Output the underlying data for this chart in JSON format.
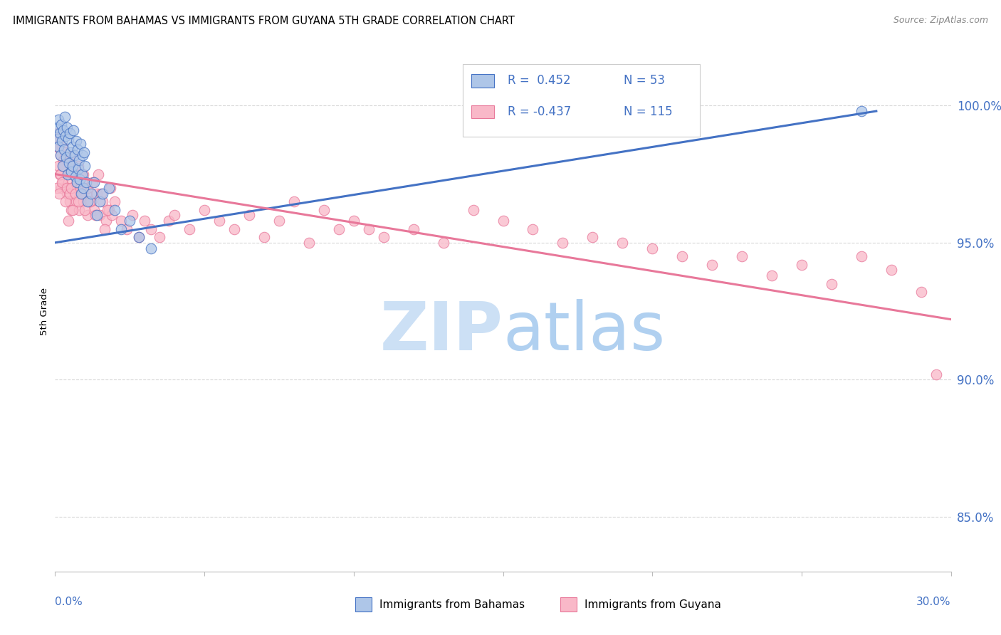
{
  "title": "IMMIGRANTS FROM BAHAMAS VS IMMIGRANTS FROM GUYANA 5TH GRADE CORRELATION CHART",
  "source": "Source: ZipAtlas.com",
  "ylabel": "5th Grade",
  "xlim": [
    0.0,
    30.0
  ],
  "ylim": [
    83.0,
    102.0
  ],
  "yticks": [
    85.0,
    90.0,
    95.0,
    100.0
  ],
  "ytick_labels": [
    "85.0%",
    "90.0%",
    "95.0%",
    "100.0%"
  ],
  "xticks": [
    0.0,
    5.0,
    10.0,
    15.0,
    20.0,
    25.0,
    30.0
  ],
  "color_bahamas_fill": "#aec6e8",
  "color_bahamas_edge": "#4472c4",
  "color_guyana_fill": "#f9b8c8",
  "color_guyana_edge": "#e8789a",
  "color_bahamas_line": "#4472c4",
  "color_guyana_line": "#e8789a",
  "color_axis_labels": "#4472c4",
  "watermark_zip_color": "#cce0f5",
  "watermark_atlas_color": "#b0d0f0",
  "bahamas_x": [
    0.05,
    0.08,
    0.1,
    0.12,
    0.15,
    0.18,
    0.2,
    0.22,
    0.25,
    0.28,
    0.3,
    0.32,
    0.35,
    0.38,
    0.4,
    0.42,
    0.45,
    0.48,
    0.5,
    0.52,
    0.55,
    0.58,
    0.6,
    0.62,
    0.65,
    0.68,
    0.7,
    0.72,
    0.75,
    0.78,
    0.8,
    0.82,
    0.85,
    0.88,
    0.9,
    0.92,
    0.95,
    0.98,
    1.0,
    1.05,
    1.1,
    1.2,
    1.3,
    1.4,
    1.5,
    1.6,
    1.8,
    2.0,
    2.2,
    2.5,
    2.8,
    3.2,
    27.0
  ],
  "bahamas_y": [
    99.2,
    98.8,
    99.5,
    98.5,
    99.0,
    98.2,
    99.3,
    98.7,
    97.8,
    99.1,
    98.4,
    99.6,
    98.9,
    98.1,
    99.2,
    97.5,
    98.8,
    97.9,
    99.0,
    98.3,
    97.6,
    98.5,
    97.8,
    99.1,
    98.2,
    97.4,
    98.7,
    97.2,
    98.4,
    97.7,
    98.0,
    97.3,
    98.6,
    96.8,
    97.5,
    98.2,
    97.0,
    98.3,
    97.8,
    97.2,
    96.5,
    96.8,
    97.2,
    96.0,
    96.5,
    96.8,
    97.0,
    96.2,
    95.5,
    95.8,
    95.2,
    94.8,
    99.8
  ],
  "guyana_x": [
    0.05,
    0.08,
    0.1,
    0.12,
    0.15,
    0.18,
    0.2,
    0.22,
    0.25,
    0.28,
    0.3,
    0.32,
    0.35,
    0.38,
    0.4,
    0.42,
    0.45,
    0.48,
    0.5,
    0.52,
    0.55,
    0.58,
    0.6,
    0.62,
    0.65,
    0.68,
    0.7,
    0.72,
    0.75,
    0.78,
    0.8,
    0.85,
    0.9,
    0.95,
    1.0,
    1.05,
    1.1,
    1.2,
    1.3,
    1.4,
    1.5,
    1.6,
    1.7,
    1.8,
    1.9,
    2.0,
    2.2,
    2.4,
    2.6,
    2.8,
    3.0,
    3.2,
    3.5,
    3.8,
    4.0,
    4.5,
    5.0,
    5.5,
    6.0,
    6.5,
    7.0,
    7.5,
    8.0,
    8.5,
    9.0,
    9.5,
    10.0,
    10.5,
    11.0,
    12.0,
    13.0,
    14.0,
    15.0,
    16.0,
    17.0,
    18.0,
    19.0,
    20.0,
    21.0,
    22.0,
    23.0,
    24.0,
    25.0,
    26.0,
    27.0,
    28.0,
    29.0,
    29.5,
    0.06,
    0.09,
    0.14,
    0.19,
    0.24,
    0.29,
    0.34,
    0.39,
    0.44,
    0.49,
    0.54,
    0.59,
    0.64,
    0.69,
    0.74,
    0.79,
    0.84,
    0.89,
    0.94,
    0.99,
    1.08,
    1.15,
    1.25,
    1.35,
    1.45,
    1.55,
    1.65,
    1.75,
    1.85
  ],
  "guyana_y": [
    98.5,
    99.0,
    97.8,
    98.8,
    97.5,
    98.2,
    97.0,
    98.5,
    97.2,
    98.0,
    97.8,
    98.3,
    97.0,
    98.0,
    96.8,
    97.5,
    97.2,
    98.0,
    96.5,
    97.8,
    96.2,
    97.5,
    97.0,
    98.2,
    96.8,
    97.5,
    96.5,
    97.2,
    97.0,
    97.8,
    96.2,
    97.5,
    97.0,
    96.5,
    97.2,
    96.8,
    96.0,
    96.5,
    96.2,
    96.8,
    96.0,
    96.5,
    95.8,
    96.2,
    96.0,
    96.5,
    95.8,
    95.5,
    96.0,
    95.2,
    95.8,
    95.5,
    95.2,
    95.8,
    96.0,
    95.5,
    96.2,
    95.8,
    95.5,
    96.0,
    95.2,
    95.8,
    96.5,
    95.0,
    96.2,
    95.5,
    95.8,
    95.5,
    95.2,
    95.5,
    95.0,
    96.2,
    95.8,
    95.5,
    95.0,
    95.2,
    95.0,
    94.8,
    94.5,
    94.2,
    94.5,
    93.8,
    94.2,
    93.5,
    94.5,
    94.0,
    93.2,
    90.2,
    97.0,
    98.5,
    96.8,
    97.5,
    97.2,
    97.8,
    96.5,
    97.0,
    95.8,
    96.8,
    97.0,
    96.2,
    97.5,
    96.8,
    97.2,
    96.5,
    97.0,
    96.8,
    97.5,
    96.2,
    97.0,
    96.5,
    97.2,
    96.0,
    97.5,
    96.8,
    95.5,
    96.2,
    97.0
  ],
  "trend_bahamas_x0": 0.0,
  "trend_bahamas_y0": 95.0,
  "trend_bahamas_x1": 27.5,
  "trend_bahamas_y1": 99.8,
  "trend_guyana_x0": 0.0,
  "trend_guyana_y0": 97.5,
  "trend_guyana_x1": 30.0,
  "trend_guyana_y1": 92.2
}
